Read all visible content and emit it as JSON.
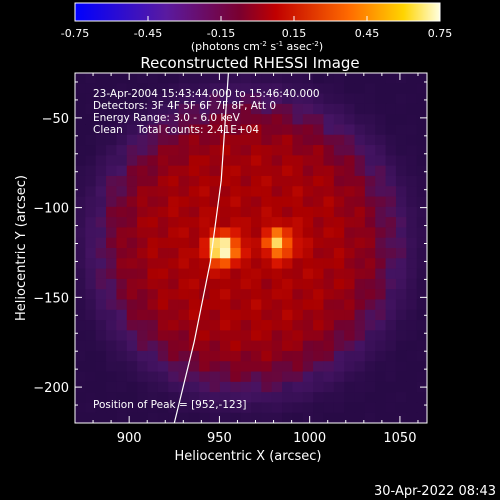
{
  "chart_data": {
    "type": "heatmap",
    "title": "Reconstructed RHESSI Image",
    "xlabel": "Heliocentric X (arcsec)",
    "ylabel": "Heliocentric Y (arcsec)",
    "xlim": [
      870,
      1065
    ],
    "ylim": [
      -220,
      -25
    ],
    "x_ticks": [
      900,
      950,
      1000,
      1050
    ],
    "y_ticks": [
      -50,
      -100,
      -150,
      -200
    ],
    "colorbar": {
      "range": [
        -0.75,
        0.75
      ],
      "ticks": [
        "-0.75",
        "-0.45",
        "-0.15",
        "0.15",
        "0.45",
        "0.75"
      ],
      "unit_label_parts": [
        "(photons cm",
        "-2",
        " s",
        "-1",
        " asec",
        "-2",
        ")"
      ]
    },
    "annotations": {
      "time": "23-Apr-2004 15:43:44.000 to 15:46:40.000",
      "detectors": "Detectors: 3F 4F 5F 6F 7F 8F, Att 0",
      "energy": "Energy Range: 3.0 - 6.0 keV",
      "clean": "Clean",
      "total_counts": "Total counts: 2.41E+04",
      "peak": "Position of Peak = [952,-123]"
    },
    "peak": {
      "x": 952,
      "y": -123
    },
    "sources": [
      {
        "x": 952,
        "y": -123,
        "peak": 0.75
      },
      {
        "x": 983,
        "y": -120,
        "peak": 0.55
      }
    ],
    "limb": [
      {
        "x": 925,
        "y": -220
      },
      {
        "x": 936,
        "y": -175
      },
      {
        "x": 945,
        "y": -130
      },
      {
        "x": 951,
        "y": -85
      },
      {
        "x": 955,
        "y": -25
      }
    ],
    "timestamp": "30-Apr-2022 08:43"
  }
}
